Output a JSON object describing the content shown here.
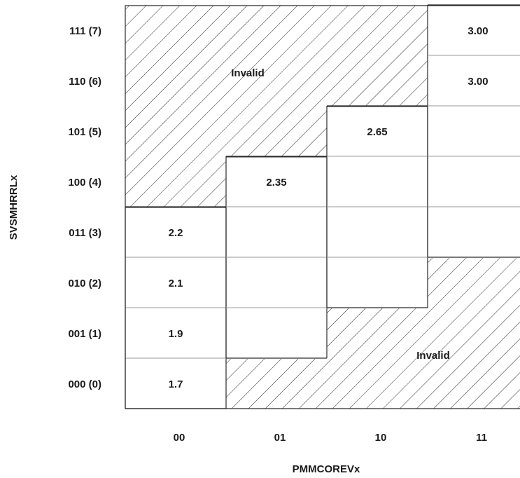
{
  "chart_data": {
    "type": "table",
    "xlabel": "PMMCOREVx",
    "ylabel": "SVSMHRRLx",
    "columns": [
      "00",
      "01",
      "10",
      "11"
    ],
    "rows": [
      "000 (0)",
      "001 (1)",
      "010 (2)",
      "011 (3)",
      "100 (4)",
      "101 (5)",
      "110 (6)",
      "111 (7)"
    ],
    "cells": [
      {
        "col": 0,
        "row": 0,
        "value": "1.7"
      },
      {
        "col": 0,
        "row": 1,
        "value": "1.9"
      },
      {
        "col": 0,
        "row": 2,
        "value": "2.1"
      },
      {
        "col": 0,
        "row": 3,
        "value": "2.2"
      },
      {
        "col": 1,
        "row": 4,
        "value": "2.35"
      },
      {
        "col": 2,
        "row": 5,
        "value": "2.65"
      },
      {
        "col": 3,
        "row": 6,
        "value": "3.00"
      },
      {
        "col": 3,
        "row": 7,
        "value": "3.00"
      }
    ],
    "invalid_label": "Invalid"
  }
}
